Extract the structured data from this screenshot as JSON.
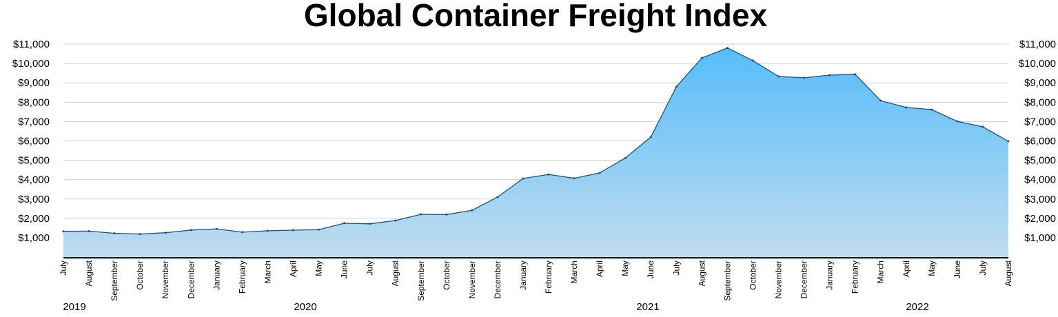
{
  "chart_data": {
    "type": "area",
    "title": "Global Container Freight Index",
    "xlabel": "",
    "ylabel": "",
    "ylim": [
      0,
      11000
    ],
    "yticks": [
      1000,
      2000,
      3000,
      4000,
      5000,
      6000,
      7000,
      8000,
      9000,
      10000,
      11000
    ],
    "ytick_labels": [
      "$1,000",
      "$2,000",
      "$3,000",
      "$4,000",
      "$5,000",
      "$6,000",
      "$7,000",
      "$8,000",
      "$9,000",
      "$10,000",
      "$11,000"
    ],
    "grid": true,
    "y_axis_both_sides": true,
    "fill_color_top": "#55bdfb",
    "fill_color_bottom": "#c0dcee",
    "line_color": "#1f4e79",
    "categories": [
      "July",
      "August",
      "September",
      "October",
      "November",
      "December",
      "January",
      "February",
      "March",
      "April",
      "May",
      "June",
      "July",
      "August",
      "September",
      "October",
      "November",
      "December",
      "January",
      "February",
      "March",
      "April",
      "May",
      "June",
      "July",
      "August",
      "September",
      "October",
      "November",
      "December",
      "January",
      "February",
      "March",
      "April",
      "May",
      "June",
      "July",
      "August"
    ],
    "years": [
      {
        "label": "2019",
        "start_index": 0
      },
      {
        "label": "2020",
        "start_index": 6
      },
      {
        "label": "2021",
        "start_index": 18
      },
      {
        "label": "2022",
        "start_index": 30
      }
    ],
    "values": [
      1330,
      1340,
      1230,
      1190,
      1260,
      1400,
      1460,
      1290,
      1360,
      1390,
      1420,
      1750,
      1720,
      1890,
      2210,
      2200,
      2420,
      3100,
      4060,
      4270,
      4070,
      4350,
      5120,
      6200,
      8800,
      10290,
      10800,
      10150,
      9330,
      9260,
      9400,
      9440,
      8080,
      7730,
      7620,
      7010,
      6730,
      5980
    ]
  }
}
